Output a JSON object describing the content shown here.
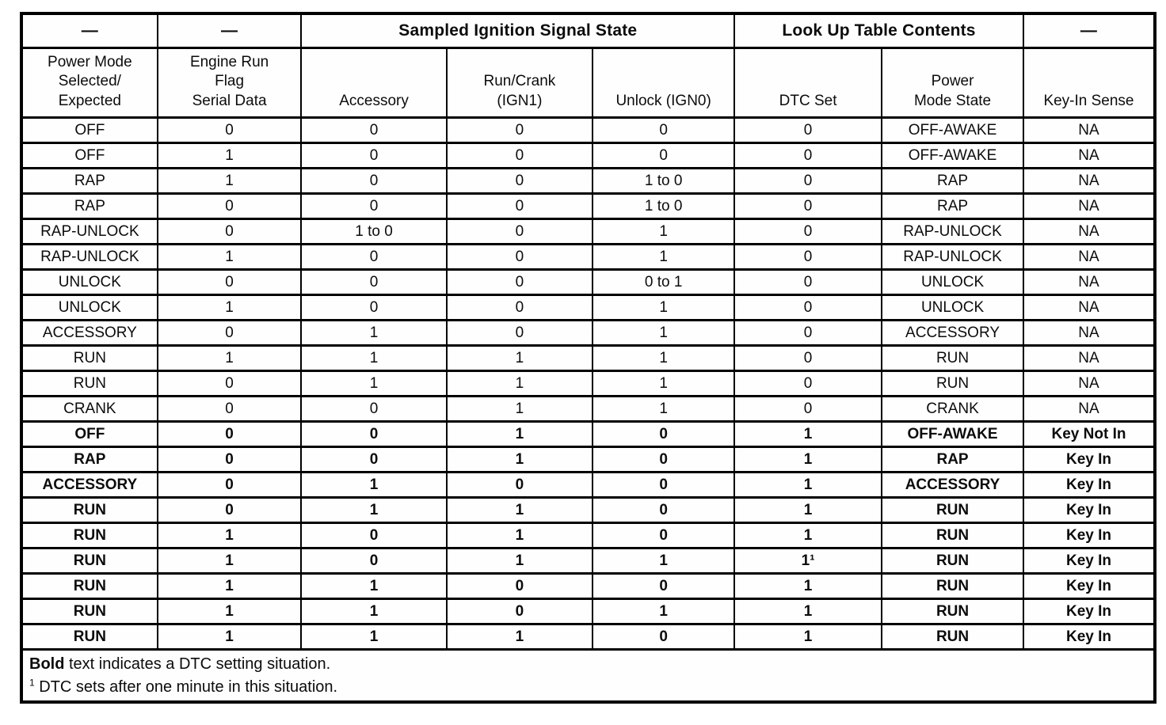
{
  "table": {
    "group_headers": [
      {
        "label": "—",
        "span": 1
      },
      {
        "label": "—",
        "span": 1
      },
      {
        "label": "Sampled Ignition Signal State",
        "span": 3
      },
      {
        "label": "Look Up Table Contents",
        "span": 2
      },
      {
        "label": "—",
        "span": 1
      }
    ],
    "columns": [
      "Power Mode\nSelected/\nExpected",
      "Engine Run\nFlag\nSerial Data",
      "Accessory",
      "Run/Crank\n(IGN1)",
      "Unlock (IGN0)",
      "DTC Set",
      "Power\nMode State",
      "Key-In Sense"
    ],
    "rows": [
      {
        "bold": false,
        "cells": [
          "OFF",
          "0",
          "0",
          "0",
          "0",
          "0",
          "OFF-AWAKE",
          "NA"
        ]
      },
      {
        "bold": false,
        "cells": [
          "OFF",
          "1",
          "0",
          "0",
          "0",
          "0",
          "OFF-AWAKE",
          "NA"
        ]
      },
      {
        "bold": false,
        "cells": [
          "RAP",
          "1",
          "0",
          "0",
          "1 to 0",
          "0",
          "RAP",
          "NA"
        ]
      },
      {
        "bold": false,
        "cells": [
          "RAP",
          "0",
          "0",
          "0",
          "1 to 0",
          "0",
          "RAP",
          "NA"
        ]
      },
      {
        "bold": false,
        "cells": [
          "RAP-UNLOCK",
          "0",
          "1 to 0",
          "0",
          "1",
          "0",
          "RAP-UNLOCK",
          "NA"
        ]
      },
      {
        "bold": false,
        "cells": [
          "RAP-UNLOCK",
          "1",
          "0",
          "0",
          "1",
          "0",
          "RAP-UNLOCK",
          "NA"
        ]
      },
      {
        "bold": false,
        "cells": [
          "UNLOCK",
          "0",
          "0",
          "0",
          "0 to 1",
          "0",
          "UNLOCK",
          "NA"
        ]
      },
      {
        "bold": false,
        "cells": [
          "UNLOCK",
          "1",
          "0",
          "0",
          "1",
          "0",
          "UNLOCK",
          "NA"
        ]
      },
      {
        "bold": false,
        "cells": [
          "ACCESSORY",
          "0",
          "1",
          "0",
          "1",
          "0",
          "ACCESSORY",
          "NA"
        ]
      },
      {
        "bold": false,
        "cells": [
          "RUN",
          "1",
          "1",
          "1",
          "1",
          "0",
          "RUN",
          "NA"
        ]
      },
      {
        "bold": false,
        "cells": [
          "RUN",
          "0",
          "1",
          "1",
          "1",
          "0",
          "RUN",
          "NA"
        ]
      },
      {
        "bold": false,
        "cells": [
          "CRANK",
          "0",
          "0",
          "1",
          "1",
          "0",
          "CRANK",
          "NA"
        ]
      },
      {
        "bold": true,
        "cells": [
          "OFF",
          "0",
          "0",
          "1",
          "0",
          "1",
          "OFF-AWAKE",
          "Key Not In"
        ]
      },
      {
        "bold": true,
        "cells": [
          "RAP",
          "0",
          "0",
          "1",
          "0",
          "1",
          "RAP",
          "Key In"
        ]
      },
      {
        "bold": true,
        "cells": [
          "ACCESSORY",
          "0",
          "1",
          "0",
          "0",
          "1",
          "ACCESSORY",
          "Key In"
        ]
      },
      {
        "bold": true,
        "cells": [
          "RUN",
          "0",
          "1",
          "1",
          "0",
          "1",
          "RUN",
          "Key In"
        ]
      },
      {
        "bold": true,
        "cells": [
          "RUN",
          "1",
          "0",
          "1",
          "0",
          "1",
          "RUN",
          "Key In"
        ]
      },
      {
        "bold": true,
        "cells": [
          "RUN",
          "1",
          "0",
          "1",
          "1",
          "1¹",
          "RUN",
          "Key In"
        ]
      },
      {
        "bold": true,
        "cells": [
          "RUN",
          "1",
          "1",
          "0",
          "0",
          "1",
          "RUN",
          "Key In"
        ]
      },
      {
        "bold": true,
        "cells": [
          "RUN",
          "1",
          "1",
          "0",
          "1",
          "1",
          "RUN",
          "Key In"
        ]
      },
      {
        "bold": true,
        "cells": [
          "RUN",
          "1",
          "1",
          "1",
          "0",
          "1",
          "RUN",
          "Key In"
        ]
      }
    ]
  },
  "footnotes": {
    "bold_word": "Bold",
    "bold_rest": " text indicates a DTC setting situation.",
    "sup_mark": "1",
    "sup_rest": " DTC sets after one minute in this situation."
  },
  "colors": {
    "ink": "#0c0c0c",
    "paper": "#ffffff",
    "border": "#000000"
  }
}
